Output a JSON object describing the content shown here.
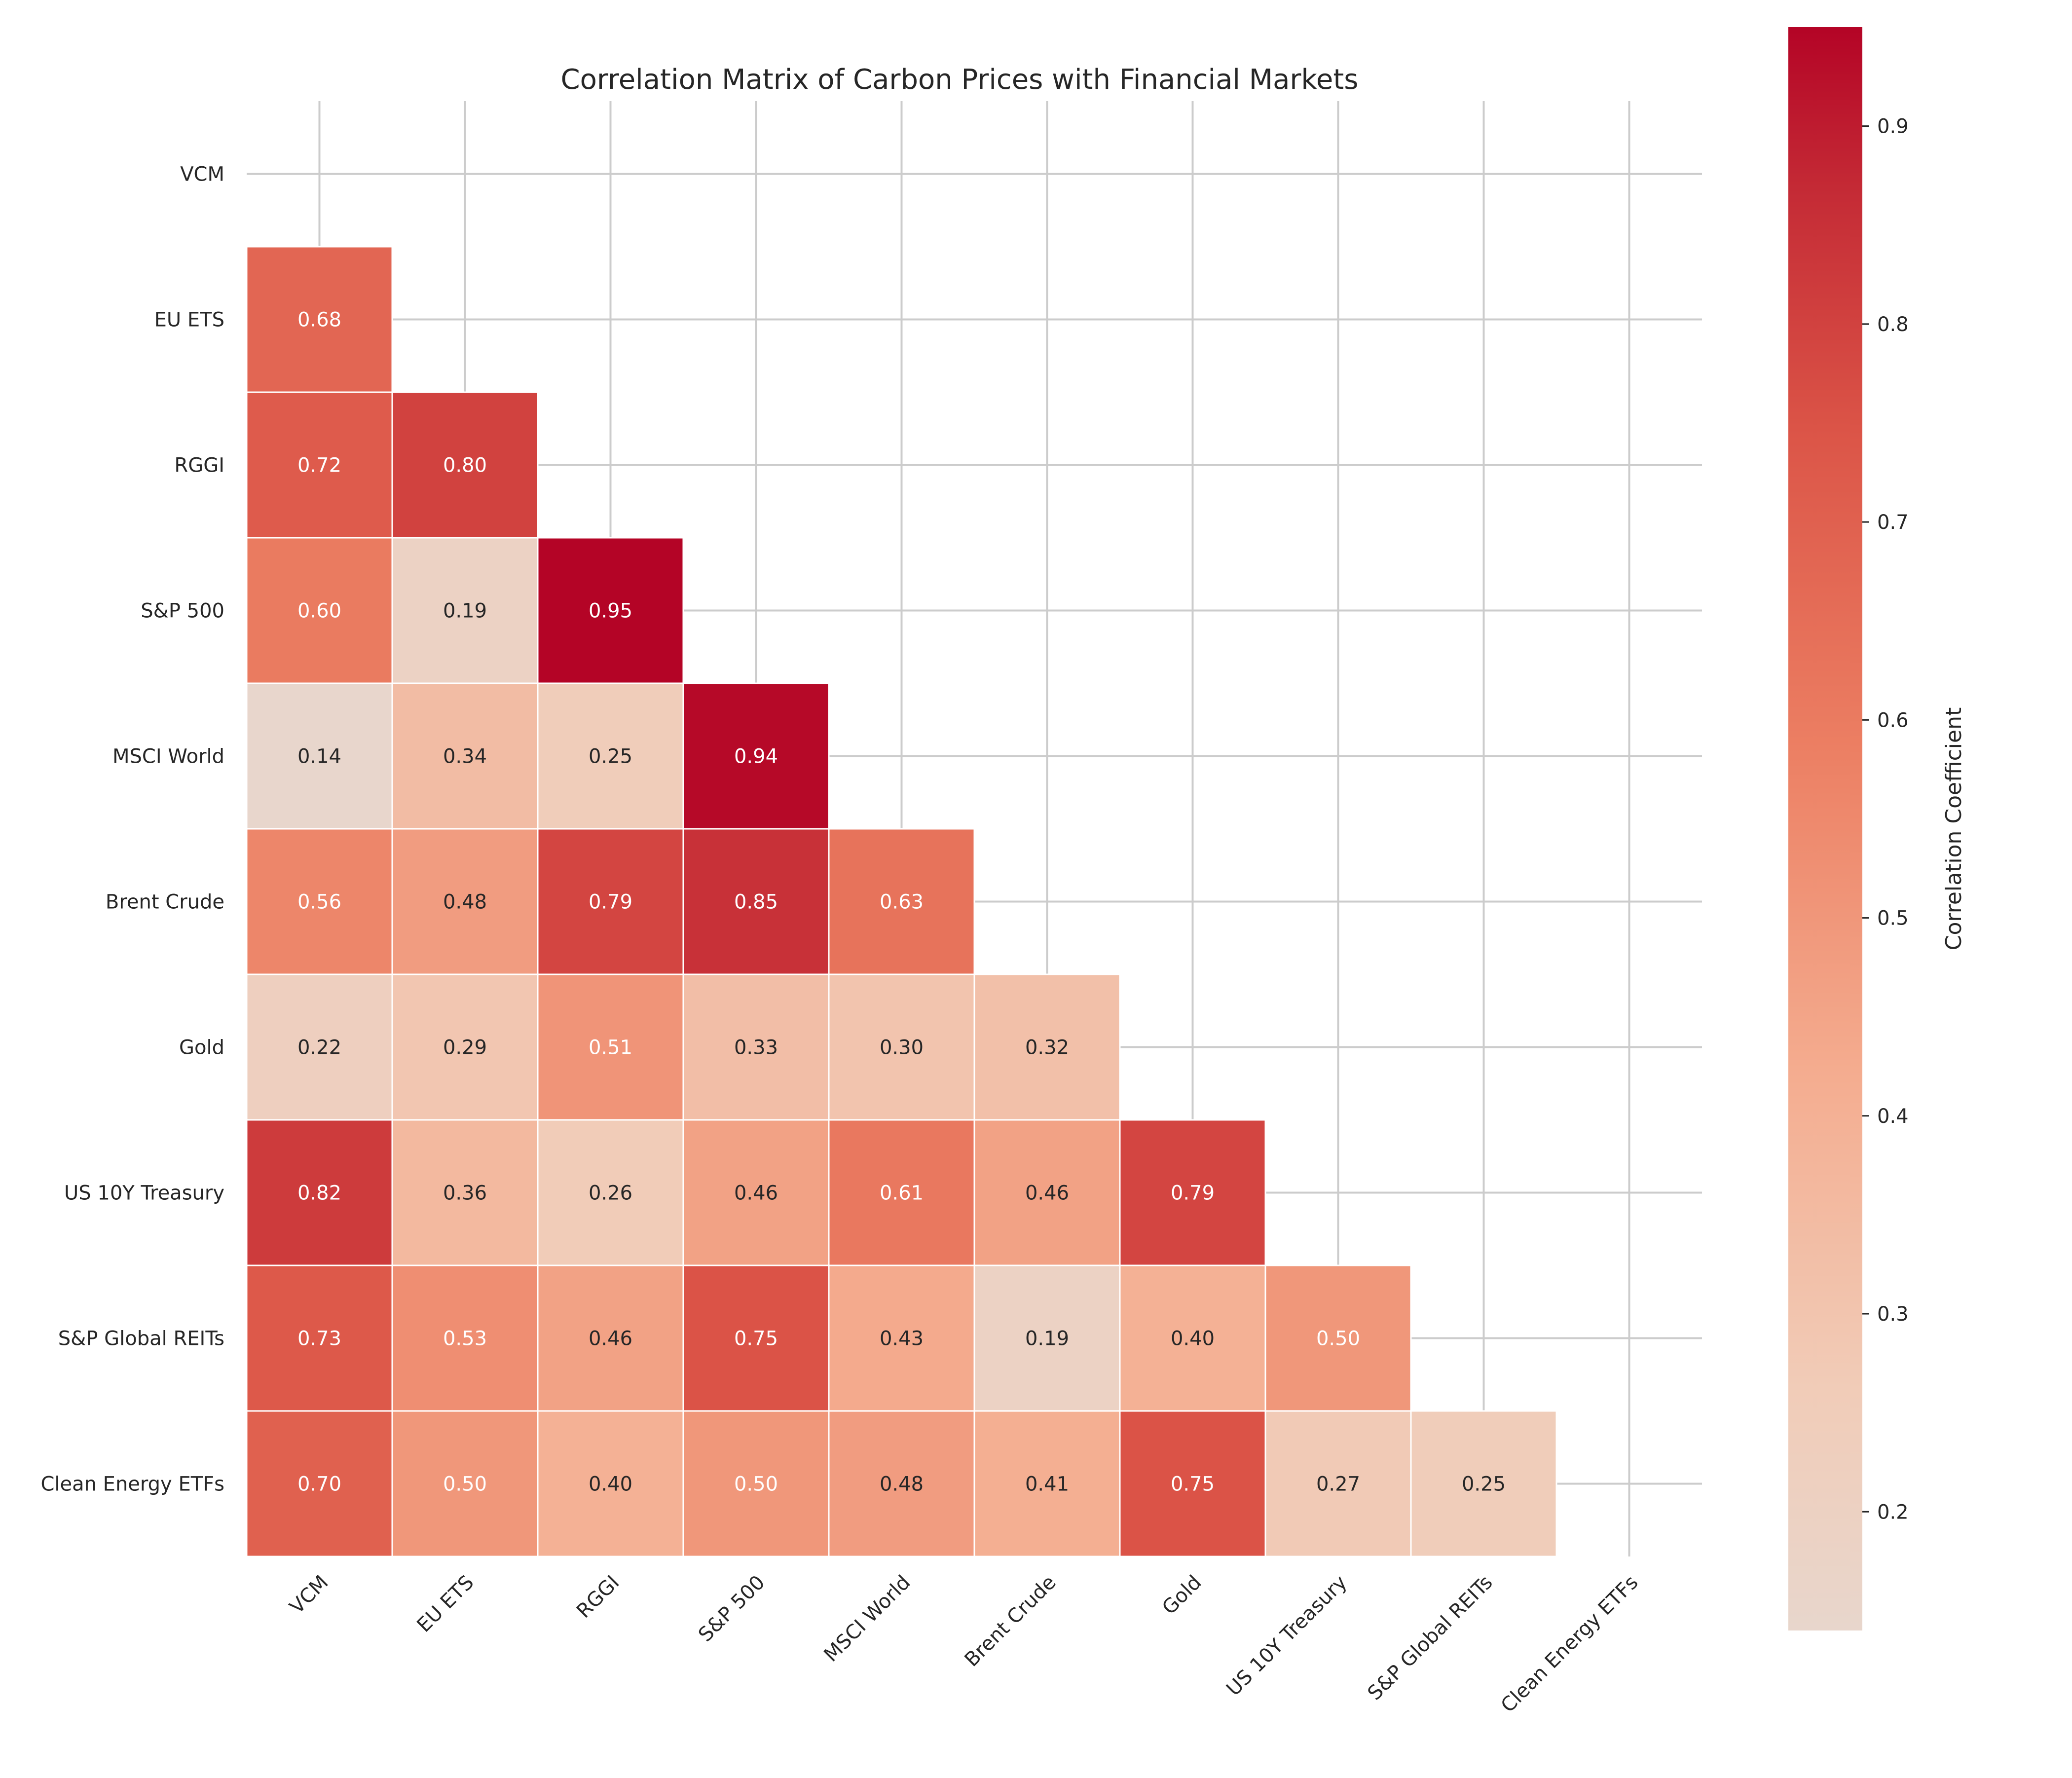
{
  "chart_data": {
    "type": "heatmap",
    "title": "Correlation Matrix of Carbon Prices with Financial Markets",
    "variables": [
      "VCM",
      "EU ETS",
      "RGGI",
      "S&P 500",
      "MSCI World",
      "Brent Crude",
      "Gold",
      "US 10Y Treasury",
      "S&P Global REITs",
      "Clean Energy ETFs"
    ],
    "mask": "upper triangle including diagonal",
    "rows": [
      {
        "label": "VCM",
        "values": []
      },
      {
        "label": "EU ETS",
        "values": [
          0.68
        ]
      },
      {
        "label": "RGGI",
        "values": [
          0.72,
          0.8
        ]
      },
      {
        "label": "S&P 500",
        "values": [
          0.6,
          0.19,
          0.95
        ]
      },
      {
        "label": "MSCI World",
        "values": [
          0.14,
          0.34,
          0.25,
          0.94
        ]
      },
      {
        "label": "Brent Crude",
        "values": [
          0.56,
          0.48,
          0.79,
          0.85,
          0.63
        ]
      },
      {
        "label": "Gold",
        "values": [
          0.22,
          0.29,
          0.51,
          0.33,
          0.3,
          0.32
        ]
      },
      {
        "label": "US 10Y Treasury",
        "values": [
          0.82,
          0.36,
          0.26,
          0.46,
          0.61,
          0.46,
          0.79
        ]
      },
      {
        "label": "S&P Global REITs",
        "values": [
          0.73,
          0.53,
          0.46,
          0.75,
          0.43,
          0.19,
          0.4,
          0.5
        ]
      },
      {
        "label": "Clean Energy ETFs",
        "values": [
          0.7,
          0.5,
          0.4,
          0.5,
          0.48,
          0.41,
          0.75,
          0.27,
          0.25
        ]
      }
    ],
    "colorbar": {
      "label": "Correlation Coefficient",
      "range": [
        0.14,
        0.95
      ],
      "ticks": [
        0.2,
        0.3,
        0.4,
        0.5,
        0.6,
        0.7,
        0.8,
        0.9
      ],
      "colormap": "coolwarm (upper half)",
      "color_low": "#e8d6cc",
      "color_high": "#b40426"
    },
    "grid": true
  }
}
